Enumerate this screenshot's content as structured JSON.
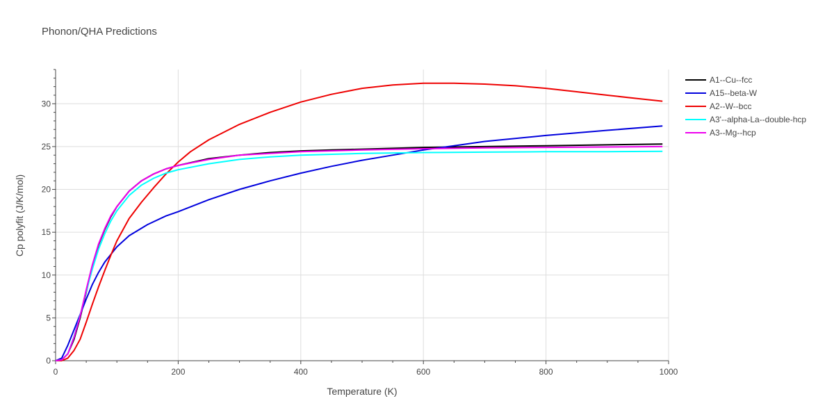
{
  "chart_data": {
    "type": "line",
    "title": "Phonon/QHA Predictions",
    "xlabel": "Temperature (K)",
    "ylabel": "Cp polyfit (J/K/mol)",
    "xlim": [
      0,
      1000
    ],
    "ylim": [
      0,
      34
    ],
    "xticks": [
      0,
      200,
      400,
      600,
      800,
      1000
    ],
    "yticks": [
      0,
      5,
      10,
      15,
      20,
      25,
      30
    ],
    "grid": true,
    "legend_position": "top-right",
    "series": [
      {
        "name": "A1--Cu--fcc",
        "color": "#000000",
        "x": [
          0,
          10,
          20,
          30,
          40,
          50,
          60,
          70,
          80,
          90,
          100,
          120,
          140,
          160,
          180,
          200,
          250,
          300,
          350,
          400,
          450,
          500,
          600,
          700,
          800,
          900,
          990
        ],
        "y": [
          0,
          0.1,
          0.8,
          2.5,
          5.0,
          8.0,
          11.0,
          13.5,
          15.3,
          16.8,
          18.0,
          19.8,
          21.0,
          21.8,
          22.4,
          22.8,
          23.6,
          24.0,
          24.3,
          24.5,
          24.6,
          24.7,
          24.9,
          25.0,
          25.1,
          25.2,
          25.3
        ]
      },
      {
        "name": "A15--beta-W",
        "color": "#0000dd",
        "x": [
          0,
          10,
          20,
          30,
          40,
          50,
          60,
          70,
          80,
          100,
          120,
          150,
          180,
          200,
          250,
          300,
          350,
          400,
          450,
          500,
          550,
          600,
          650,
          700,
          800,
          900,
          990
        ],
        "y": [
          0,
          0.3,
          1.8,
          3.6,
          5.4,
          7.2,
          8.9,
          10.3,
          11.5,
          13.3,
          14.6,
          15.9,
          16.9,
          17.4,
          18.8,
          20.0,
          21.0,
          21.9,
          22.7,
          23.4,
          24.0,
          24.6,
          25.1,
          25.6,
          26.3,
          26.9,
          27.4
        ]
      },
      {
        "name": "A2--W--bcc",
        "color": "#ee0000",
        "x": [
          0,
          10,
          20,
          30,
          40,
          50,
          60,
          70,
          80,
          90,
          100,
          120,
          140,
          160,
          180,
          200,
          220,
          250,
          300,
          350,
          400,
          450,
          500,
          550,
          600,
          650,
          700,
          750,
          800,
          850,
          900,
          950,
          990
        ],
        "y": [
          0,
          0,
          0.3,
          1.2,
          2.5,
          4.5,
          6.6,
          8.6,
          10.5,
          12.3,
          14.0,
          16.6,
          18.5,
          20.2,
          21.8,
          23.2,
          24.4,
          25.8,
          27.6,
          29.0,
          30.2,
          31.1,
          31.8,
          32.2,
          32.4,
          32.4,
          32.3,
          32.1,
          31.8,
          31.4,
          31.0,
          30.6,
          30.3
        ]
      },
      {
        "name": "A3'--alpha-La--double-hcp",
        "color": "#00ffff",
        "x": [
          0,
          10,
          20,
          30,
          40,
          50,
          60,
          70,
          80,
          90,
          100,
          120,
          140,
          160,
          180,
          200,
          250,
          300,
          350,
          400,
          500,
          600,
          700,
          800,
          900,
          990
        ],
        "y": [
          0,
          0.1,
          0.8,
          2.8,
          5.3,
          8.1,
          10.7,
          13.0,
          14.8,
          16.3,
          17.5,
          19.3,
          20.5,
          21.3,
          21.9,
          22.3,
          23.0,
          23.5,
          23.8,
          24.0,
          24.2,
          24.3,
          24.35,
          24.4,
          24.4,
          24.45
        ]
      },
      {
        "name": "A3--Mg--hcp",
        "color": "#ee00ee",
        "x": [
          0,
          10,
          20,
          30,
          40,
          50,
          60,
          70,
          80,
          90,
          100,
          120,
          140,
          160,
          180,
          200,
          250,
          300,
          350,
          400,
          500,
          600,
          700,
          800,
          900,
          990
        ],
        "y": [
          0,
          0.1,
          0.8,
          2.7,
          5.2,
          8.3,
          11.2,
          13.6,
          15.4,
          16.9,
          18.0,
          19.8,
          21.0,
          21.8,
          22.4,
          22.8,
          23.5,
          24.0,
          24.2,
          24.4,
          24.6,
          24.75,
          24.85,
          24.9,
          24.95,
          25.0
        ]
      }
    ]
  }
}
